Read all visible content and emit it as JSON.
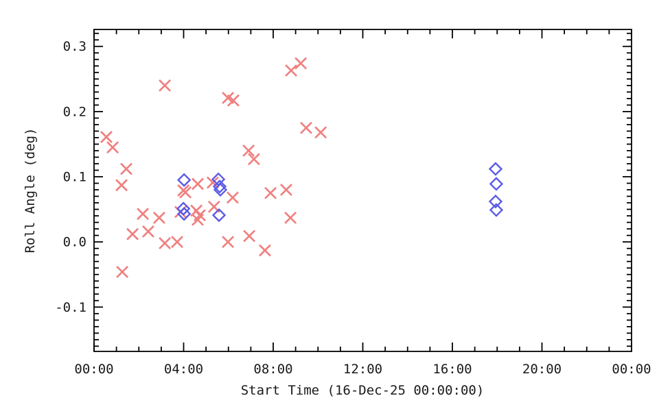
{
  "window": {
    "background_color": "#ffffff"
  },
  "chart_data": {
    "type": "scatter",
    "title": "",
    "xlabel": "Start Time (16-Dec-25 00:00:00)",
    "ylabel": "Roll Angle (deg)",
    "x_unit": "hours since 16-Dec-25 00:00:00",
    "xlim_hours": [
      0,
      24
    ],
    "ylim": [
      -0.168,
      0.326
    ],
    "grid": false,
    "legend_position": "none",
    "axis_color": "#000000",
    "text_color": "#1a1a1a",
    "x_ticks": {
      "major_values_hours": [
        0,
        4,
        8,
        12,
        16,
        20,
        24
      ],
      "major_labels": [
        "00:00",
        "04:00",
        "08:00",
        "12:00",
        "16:00",
        "20:00",
        "00:00"
      ],
      "minor_interval_hours": 1
    },
    "y_ticks": {
      "major_values": [
        -0.1,
        0.0,
        0.1,
        0.2,
        0.3
      ],
      "major_labels": [
        "-0.1",
        "0.0",
        "0.1",
        "0.2",
        "0.3"
      ],
      "minor_interval": 0.01
    },
    "series": [
      {
        "name": "roll-angle-x-samples",
        "marker": "x",
        "color": "#F08080",
        "points_time_hours_value_deg": [
          [
            0.55,
            0.161
          ],
          [
            0.83,
            0.145
          ],
          [
            1.23,
            0.087
          ],
          [
            1.26,
            -0.046
          ],
          [
            1.44,
            0.112
          ],
          [
            1.72,
            0.012
          ],
          [
            2.18,
            0.043
          ],
          [
            2.42,
            0.016
          ],
          [
            2.91,
            0.037
          ],
          [
            3.16,
            0.24
          ],
          [
            3.16,
            -0.002
          ],
          [
            3.71,
            0.0
          ],
          [
            3.86,
            0.046
          ],
          [
            3.99,
            0.079
          ],
          [
            4.08,
            0.076
          ],
          [
            4.57,
            0.048
          ],
          [
            4.63,
            0.089
          ],
          [
            4.63,
            0.034
          ],
          [
            4.72,
            0.041
          ],
          [
            5.3,
            0.091
          ],
          [
            5.36,
            0.054
          ],
          [
            5.98,
            0.221
          ],
          [
            5.98,
            0.0
          ],
          [
            6.19,
            0.068
          ],
          [
            6.22,
            0.217
          ],
          [
            6.9,
            0.14
          ],
          [
            6.93,
            0.009
          ],
          [
            7.14,
            0.127
          ],
          [
            7.63,
            -0.013
          ],
          [
            7.88,
            0.075
          ],
          [
            8.58,
            0.08
          ],
          [
            8.77,
            0.037
          ],
          [
            8.8,
            0.263
          ],
          [
            9.23,
            0.274
          ],
          [
            9.47,
            0.175
          ],
          [
            10.12,
            0.168
          ]
        ]
      },
      {
        "name": "roll-angle-diamond-samples",
        "marker": "open-diamond",
        "color": "#5B5BE6",
        "points_time_hours_value_deg": [
          [
            3.99,
            0.051
          ],
          [
            4.02,
            0.095
          ],
          [
            4.02,
            0.043
          ],
          [
            5.55,
            0.096
          ],
          [
            5.58,
            0.041
          ],
          [
            5.61,
            0.085
          ],
          [
            5.64,
            0.08
          ],
          [
            17.93,
            0.112
          ],
          [
            17.93,
            0.062
          ],
          [
            17.96,
            0.089
          ],
          [
            17.96,
            0.049
          ]
        ]
      }
    ]
  }
}
